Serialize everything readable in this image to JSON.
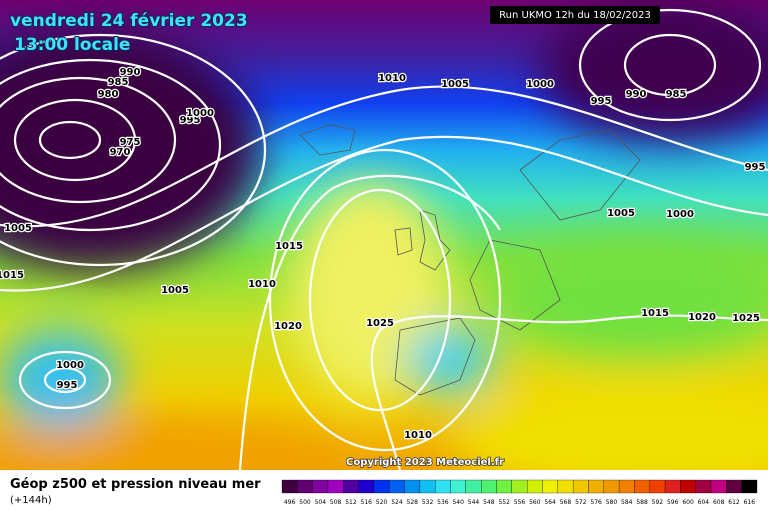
{
  "header": {
    "date": "vendredi 24 février 2023",
    "time": "13:00 locale",
    "run": "Run UKMO 12h du 18/02/2023"
  },
  "isobars": {
    "labels": [
      "990",
      "985",
      "980",
      "975",
      "970",
      "995",
      "1000",
      "1005",
      "1015",
      "1010",
      "1005",
      "1000",
      "995",
      "990",
      "985",
      "995",
      "1005",
      "1000",
      "1015",
      "1010",
      "1005",
      "1020",
      "1025",
      "1000",
      "995",
      "1015",
      "1020",
      "1025",
      "1010"
    ]
  },
  "copyright": "Copyright 2023 Meteociel.fr",
  "footer": {
    "title": "Géop z500 et pression niveau mer",
    "lead": "(+144h)"
  },
  "legend": {
    "labels": [
      "496",
      "500",
      "504",
      "508",
      "512",
      "516",
      "520",
      "524",
      "528",
      "532",
      "536",
      "540",
      "544",
      "548",
      "552",
      "556",
      "560",
      "564",
      "568",
      "572",
      "576",
      "580",
      "584",
      "588",
      "592",
      "596",
      "600",
      "604",
      "608",
      "612",
      "616"
    ],
    "colors": [
      "#400040",
      "#600070",
      "#8000a0",
      "#a000c0",
      "#5000a0",
      "#2000d0",
      "#0030f0",
      "#0060f0",
      "#0090f0",
      "#10c0f0",
      "#30e0f0",
      "#40f0d0",
      "#40f0a0",
      "#50f070",
      "#70f040",
      "#a0f020",
      "#d0f000",
      "#f0f000",
      "#f0e000",
      "#f0c800",
      "#f0b000",
      "#f09800",
      "#f08000",
      "#f06000",
      "#f04000",
      "#e02020",
      "#c00000",
      "#a00040",
      "#c00080",
      "#600040",
      "#000000"
    ]
  }
}
